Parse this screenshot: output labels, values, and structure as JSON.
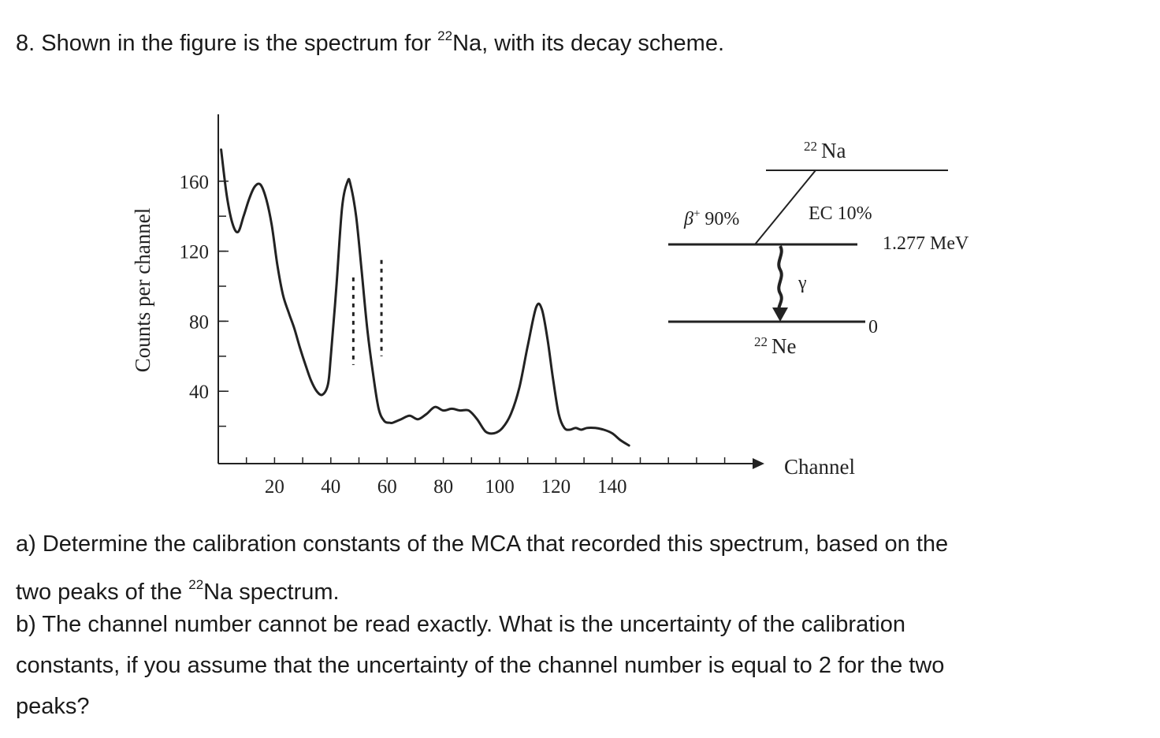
{
  "question": {
    "number": "8.",
    "text_before": "Shown in the figure is the spectrum for ",
    "isotope_mass": "22",
    "text_after": "Na, with its decay scheme."
  },
  "chart_data": {
    "type": "line",
    "title": "",
    "xlabel": "Channel",
    "ylabel": "Counts per channel",
    "xlim": [
      0,
      160
    ],
    "ylim": [
      0,
      180
    ],
    "x_ticks": [
      20,
      40,
      60,
      80,
      100,
      120,
      140
    ],
    "y_ticks": [
      40,
      80,
      120,
      160
    ],
    "grid": false,
    "legend": "none",
    "dashed_break": [
      48,
      58
    ],
    "series": [
      {
        "x": [
          1,
          3,
          5,
          7,
          9,
          11,
          13,
          15,
          17,
          19,
          21,
          23,
          25,
          27,
          29,
          31,
          33,
          35,
          37,
          39,
          40,
          42,
          44,
          46,
          47,
          49,
          51,
          53,
          55,
          57,
          59,
          61,
          62,
          65,
          68,
          71,
          74,
          77,
          80,
          83,
          86,
          89,
          92,
          95,
          98,
          101,
          104,
          107,
          110,
          113,
          115,
          117,
          119,
          121,
          123,
          125,
          127,
          129,
          131,
          134,
          137,
          140,
          143,
          146
        ],
        "y": [
          178,
          152,
          136,
          131,
          140,
          150,
          157,
          158,
          150,
          135,
          112,
          95,
          85,
          76,
          65,
          55,
          46,
          40,
          38,
          44,
          60,
          100,
          145,
          160,
          158,
          140,
          108,
          75,
          50,
          30,
          23,
          22,
          22,
          24,
          26,
          24,
          27,
          31,
          29,
          30,
          29,
          29,
          24,
          17,
          16,
          19,
          27,
          42,
          66,
          88,
          87,
          70,
          47,
          27,
          19,
          18,
          19,
          18,
          19,
          19,
          18,
          16,
          12,
          9
        ]
      }
    ]
  },
  "decay_scheme": {
    "parent_mass": "22",
    "parent": "Na",
    "beta_label": "β",
    "beta_charge": "+",
    "beta_percent": "90%",
    "ec_label": "EC 10%",
    "excited_energy": "1.277 MeV",
    "gamma_label": "γ",
    "ground_energy": "0",
    "daughter_mass": "22",
    "daughter": "Ne"
  },
  "part_a": {
    "text_line1": "a)  Determine the calibration constants  of the MCA that recorded this spectrum, based on the",
    "text_line2_before": "two peaks of the ",
    "text_line2_sup": "22",
    "text_line2_after": "Na spectrum."
  },
  "part_b": {
    "line1": "b) The channel number cannot be read exactly. What is the uncertainty of the calibration",
    "line2": "constants, if you assume that the uncertainty of the channel number is equal to 2 for the two",
    "line3": "peaks?"
  },
  "colors": {
    "ink": "#1a1a1a",
    "figure_ink": "#222222"
  }
}
